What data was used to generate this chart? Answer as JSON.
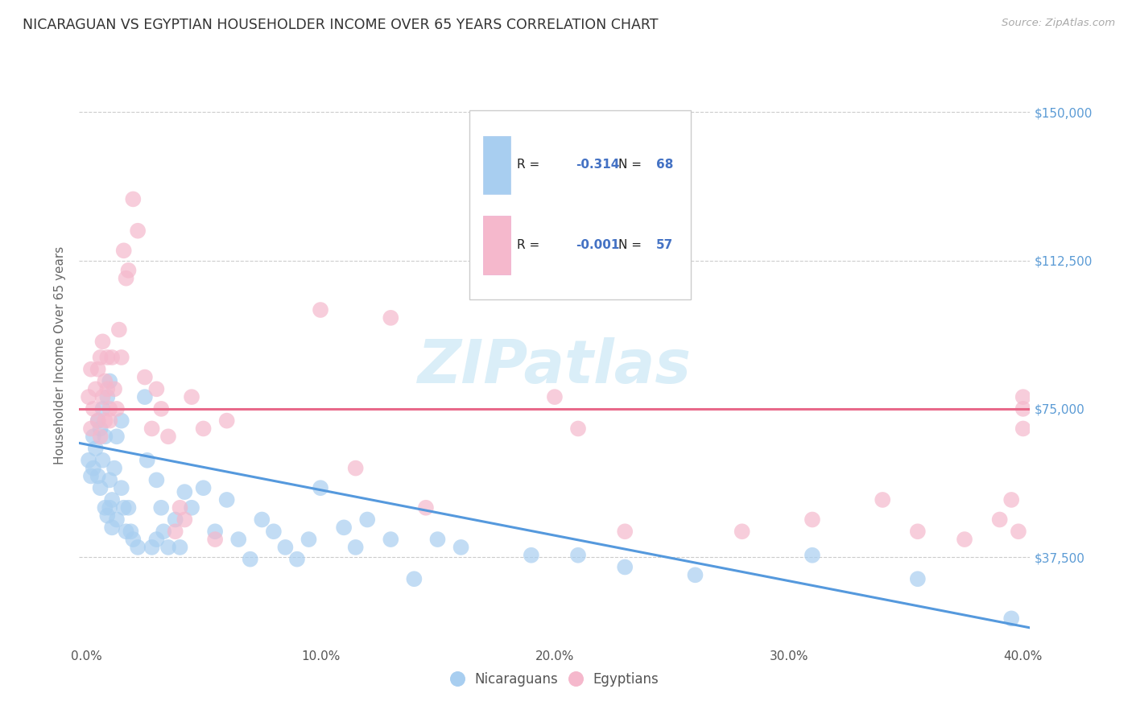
{
  "title": "NICARAGUAN VS EGYPTIAN HOUSEHOLDER INCOME OVER 65 YEARS CORRELATION CHART",
  "source": "Source: ZipAtlas.com",
  "ylabel": "Householder Income Over 65 years",
  "xlabel_ticks": [
    "0.0%",
    "10.0%",
    "20.0%",
    "30.0%",
    "40.0%"
  ],
  "ytick_labels": [
    "$37,500",
    "$75,000",
    "$112,500",
    "$150,000"
  ],
  "ytick_values": [
    37500,
    75000,
    112500,
    150000
  ],
  "xlim": [
    -0.003,
    0.403
  ],
  "ylim": [
    15000,
    162000
  ],
  "nicaraguan_R": "-0.314",
  "nicaraguan_N": "68",
  "egyptian_R": "-0.001",
  "egyptian_N": "57",
  "watermark": "ZIPatlas",
  "nicaraguan_color": "#a8cef0",
  "egyptian_color": "#f5b8cc",
  "nicaraguan_line_color": "#5599dd",
  "egyptian_line_color": "#e8698a",
  "nicaraguan_x": [
    0.001,
    0.002,
    0.003,
    0.003,
    0.004,
    0.005,
    0.005,
    0.006,
    0.006,
    0.007,
    0.007,
    0.008,
    0.008,
    0.009,
    0.009,
    0.01,
    0.01,
    0.01,
    0.011,
    0.011,
    0.012,
    0.013,
    0.013,
    0.015,
    0.015,
    0.016,
    0.017,
    0.018,
    0.019,
    0.02,
    0.022,
    0.025,
    0.026,
    0.028,
    0.03,
    0.03,
    0.032,
    0.033,
    0.035,
    0.038,
    0.04,
    0.042,
    0.045,
    0.05,
    0.055,
    0.06,
    0.065,
    0.07,
    0.075,
    0.08,
    0.085,
    0.09,
    0.095,
    0.1,
    0.11,
    0.115,
    0.12,
    0.13,
    0.14,
    0.15,
    0.16,
    0.19,
    0.21,
    0.23,
    0.26,
    0.31,
    0.355,
    0.395
  ],
  "nicaraguan_y": [
    62000,
    58000,
    68000,
    60000,
    65000,
    72000,
    58000,
    70000,
    55000,
    75000,
    62000,
    68000,
    50000,
    78000,
    48000,
    82000,
    57000,
    50000,
    45000,
    52000,
    60000,
    47000,
    68000,
    72000,
    55000,
    50000,
    44000,
    50000,
    44000,
    42000,
    40000,
    78000,
    62000,
    40000,
    57000,
    42000,
    50000,
    44000,
    40000,
    47000,
    40000,
    54000,
    50000,
    55000,
    44000,
    52000,
    42000,
    37000,
    47000,
    44000,
    40000,
    37000,
    42000,
    55000,
    45000,
    40000,
    47000,
    42000,
    32000,
    42000,
    40000,
    38000,
    38000,
    35000,
    33000,
    38000,
    32000,
    22000
  ],
  "egyptian_x": [
    0.001,
    0.002,
    0.002,
    0.003,
    0.004,
    0.005,
    0.005,
    0.006,
    0.006,
    0.007,
    0.007,
    0.008,
    0.008,
    0.009,
    0.009,
    0.01,
    0.01,
    0.011,
    0.012,
    0.013,
    0.014,
    0.015,
    0.016,
    0.017,
    0.018,
    0.02,
    0.022,
    0.025,
    0.028,
    0.03,
    0.032,
    0.035,
    0.038,
    0.04,
    0.042,
    0.045,
    0.05,
    0.055,
    0.06,
    0.1,
    0.115,
    0.13,
    0.145,
    0.2,
    0.21,
    0.23,
    0.28,
    0.31,
    0.34,
    0.355,
    0.375,
    0.39,
    0.395,
    0.398,
    0.4,
    0.4,
    0.4
  ],
  "egyptian_y": [
    78000,
    70000,
    85000,
    75000,
    80000,
    85000,
    72000,
    88000,
    68000,
    92000,
    78000,
    82000,
    72000,
    88000,
    80000,
    75000,
    72000,
    88000,
    80000,
    75000,
    95000,
    88000,
    115000,
    108000,
    110000,
    128000,
    120000,
    83000,
    70000,
    80000,
    75000,
    68000,
    44000,
    50000,
    47000,
    78000,
    70000,
    42000,
    72000,
    100000,
    60000,
    98000,
    50000,
    78000,
    70000,
    44000,
    44000,
    47000,
    52000,
    44000,
    42000,
    47000,
    52000,
    44000,
    78000,
    75000,
    70000
  ],
  "background_color": "#ffffff",
  "grid_color": "#cccccc",
  "title_color": "#333333",
  "right_tick_color": "#5b9bd5"
}
